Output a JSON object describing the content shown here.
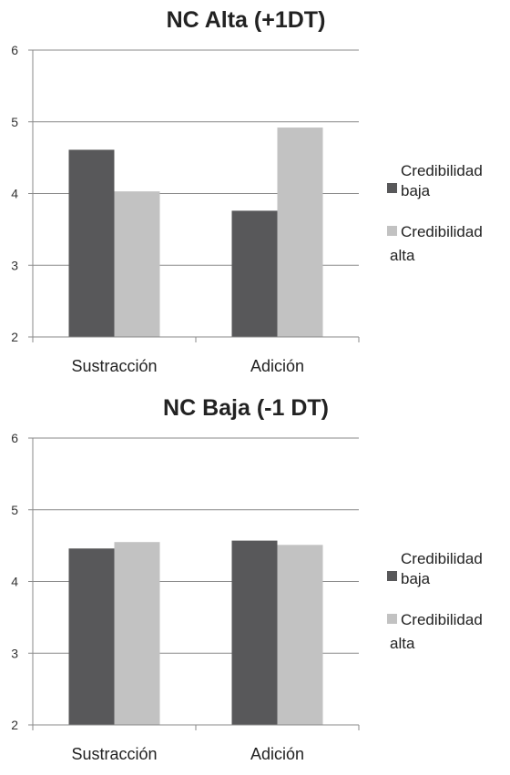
{
  "colors": {
    "baja": "#58585a",
    "alta": "#c2c2c2",
    "axis": "#8a8a8a",
    "grid": "#8a8a8a"
  },
  "chart_data": [
    {
      "type": "bar",
      "title": "NC Alta (+1DT)",
      "categories": [
        "Sustracción",
        "Adición"
      ],
      "series": [
        {
          "name_lines": [
            "Credibilidad",
            "baja"
          ],
          "values": [
            4.61,
            3.76
          ]
        },
        {
          "name_lines": [
            "Credibilidad",
            "alta"
          ],
          "values": [
            4.03,
            4.92
          ]
        }
      ],
      "ylim": [
        2,
        6
      ],
      "yticks": [
        2,
        3,
        4,
        5,
        6
      ],
      "legend": "right",
      "grid": true
    },
    {
      "type": "bar",
      "title": "NC Baja (-1 DT)",
      "categories": [
        "Sustracción",
        "Adición"
      ],
      "series": [
        {
          "name_lines": [
            "Credibilidad",
            "baja"
          ],
          "values": [
            4.46,
            4.57
          ]
        },
        {
          "name_lines": [
            "Credibilidad",
            "alta"
          ],
          "values": [
            4.55,
            4.51
          ]
        }
      ],
      "ylim": [
        2,
        6
      ],
      "yticks": [
        2,
        3,
        4,
        5,
        6
      ],
      "legend": "right",
      "grid": true
    }
  ]
}
